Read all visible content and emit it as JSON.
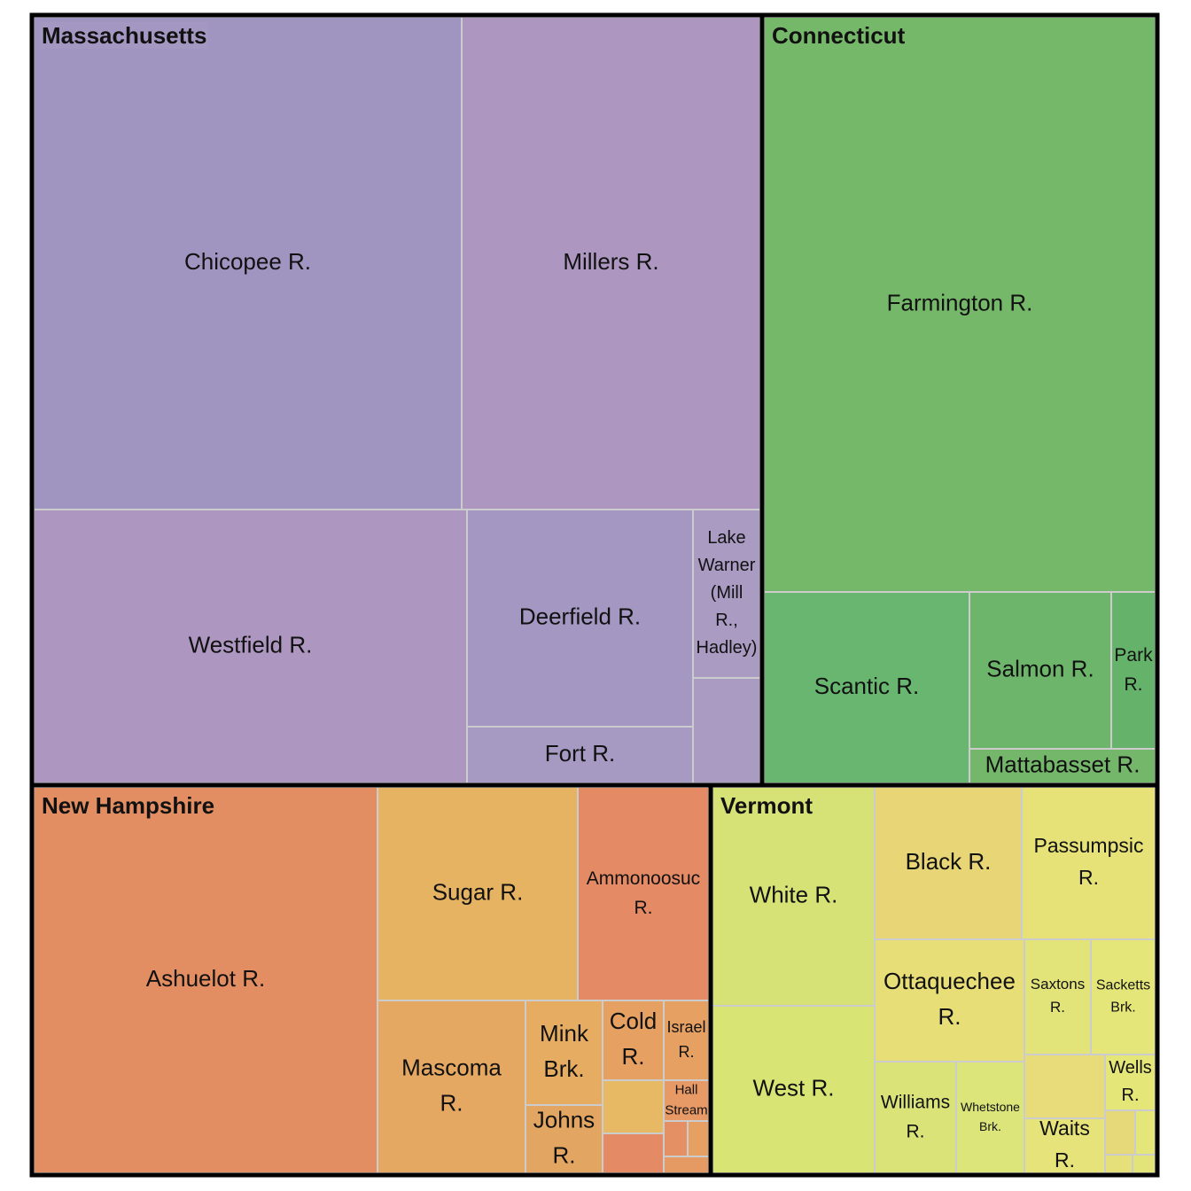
{
  "groups": [
    {
      "name": "Massachusetts",
      "children": [
        {
          "label": "Chicopee R."
        },
        {
          "label": "Millers R."
        },
        {
          "label": "Westfield R."
        },
        {
          "label": "Deerfield R."
        },
        {
          "label": "Fort R."
        },
        {
          "label": "Lake Warner (Mill R., Hadley)"
        }
      ]
    },
    {
      "name": "Connecticut",
      "children": [
        {
          "label": "Farmington R."
        },
        {
          "label": "Scantic R."
        },
        {
          "label": "Salmon R."
        },
        {
          "label": "Park R."
        },
        {
          "label": "Mattabasset R."
        }
      ]
    },
    {
      "name": "New Hampshire",
      "children": [
        {
          "label": "Ashuelot R."
        },
        {
          "label": "Sugar R."
        },
        {
          "label": "Ammonoosuc R."
        },
        {
          "label": "Mascoma R."
        },
        {
          "label": "Mink Brk."
        },
        {
          "label": "Johns R."
        },
        {
          "label": "Cold R."
        },
        {
          "label": "Israel R."
        },
        {
          "label": "Hall Stream"
        }
      ]
    },
    {
      "name": "Vermont",
      "children": [
        {
          "label": "White R."
        },
        {
          "label": "West R."
        },
        {
          "label": "Black R."
        },
        {
          "label": "Passumpsic R."
        },
        {
          "label": "Ottaquechee R."
        },
        {
          "label": "Saxtons R."
        },
        {
          "label": "Sacketts Brk."
        },
        {
          "label": "Williams R."
        },
        {
          "label": "Whetstone Brk."
        },
        {
          "label": "Waits R."
        },
        {
          "label": "Wells R."
        }
      ]
    }
  ]
}
